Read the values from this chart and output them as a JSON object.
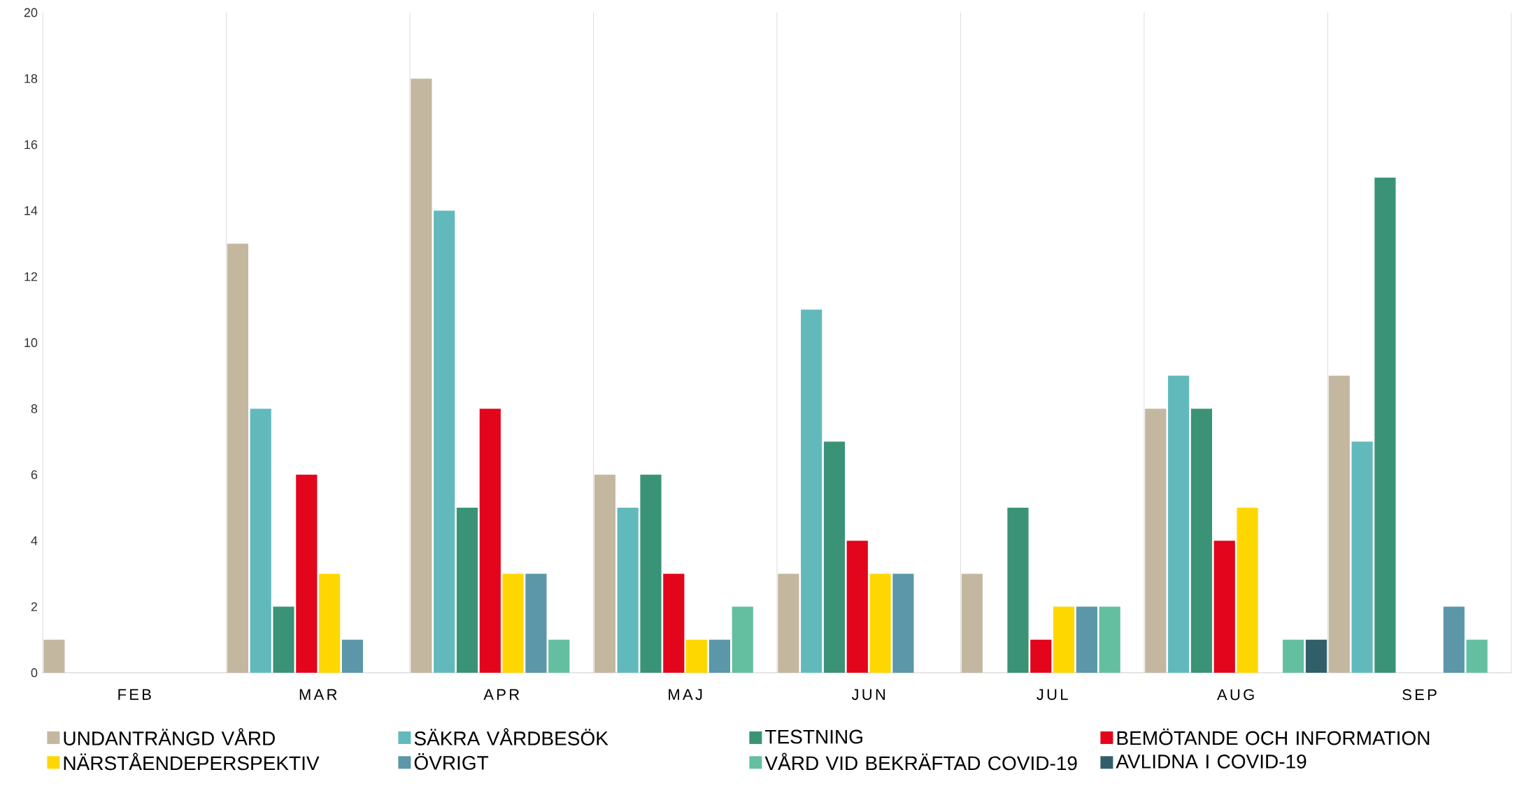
{
  "chart_data": {
    "type": "bar",
    "categories": [
      "FEB",
      "MAR",
      "APR",
      "MAJ",
      "JUN",
      "JUL",
      "AUG",
      "SEP"
    ],
    "series": [
      {
        "name": "UNDANTRÄNGD VÅRD",
        "color": "#c4b7a0",
        "values": [
          1,
          13,
          18,
          6,
          3,
          3,
          8,
          9
        ]
      },
      {
        "name": "SÄKRA VÅRDBESÖK",
        "color": "#62b9bc",
        "values": [
          0,
          8,
          14,
          5,
          11,
          0,
          9,
          7
        ]
      },
      {
        "name": "TESTNING",
        "color": "#3a9376",
        "values": [
          0,
          2,
          5,
          6,
          7,
          5,
          8,
          15
        ]
      },
      {
        "name": "BEMÖTANDE OCH INFORMATION",
        "color": "#e3051b",
        "values": [
          0,
          6,
          8,
          3,
          4,
          1,
          4,
          0
        ]
      },
      {
        "name": "NÄRSTÅENDEPERSPEKTIV",
        "color": "#ffd700",
        "values": [
          0,
          3,
          3,
          1,
          3,
          2,
          5,
          0
        ]
      },
      {
        "name": "ÖVRIGT",
        "color": "#5b97a8",
        "values": [
          0,
          1,
          3,
          1,
          3,
          2,
          0,
          2
        ]
      },
      {
        "name": "VÅRD VID BEKRÄFTAD COVID-19",
        "color": "#63bfa0",
        "values": [
          0,
          0,
          1,
          2,
          0,
          2,
          1,
          1
        ]
      },
      {
        "name": "AVLIDNA I COVID-19",
        "color": "#325e6a",
        "values": [
          0,
          0,
          0,
          0,
          0,
          0,
          1,
          0
        ]
      }
    ],
    "ylim": [
      0,
      20
    ],
    "yticks": [
      0,
      2,
      4,
      6,
      8,
      10,
      12,
      14,
      16,
      18,
      20
    ],
    "grid": "x",
    "legend": "bottom"
  }
}
